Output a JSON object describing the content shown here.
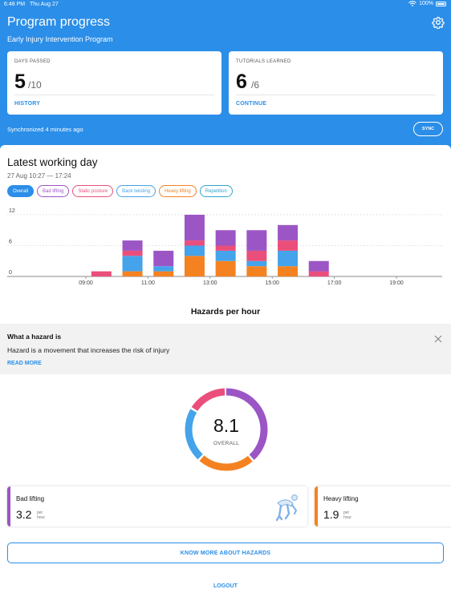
{
  "status_bar": {
    "time": "6:48 PM",
    "date": "Thu Aug 27",
    "battery": "100%"
  },
  "header": {
    "title": "Program progress",
    "subtitle": "Early Injury Intervention Program",
    "icon": "gear-icon",
    "sync_status": "Synchronized 4 minutes ago",
    "sync_label": "SYNC"
  },
  "cards": [
    {
      "label": "DAYS PASSED",
      "value": "5",
      "total": "/10",
      "link": "HISTORY"
    },
    {
      "label": "TUTORIALS LEARNED",
      "value": "6",
      "total": "/6",
      "link": "CONTINUE"
    }
  ],
  "working_day": {
    "title": "Latest working day",
    "range": "27 Aug 10:27 — 17:24",
    "chips": [
      {
        "label": "Overall",
        "color": "#2b8ee8",
        "active": true
      },
      {
        "label": "Bad lifting",
        "color": "#9c55c5"
      },
      {
        "label": "Static posture",
        "color": "#ea4f7c"
      },
      {
        "label": "Back twisting",
        "color": "#44a3ea"
      },
      {
        "label": "Heavy lifting",
        "color": "#f58220"
      },
      {
        "label": "Repetition",
        "color": "#2ea7c9"
      }
    ]
  },
  "chart_data": {
    "type": "bar",
    "stacked": true,
    "title": "Hazards per hour",
    "y_ticks": [
      "12",
      "6",
      "0"
    ],
    "x_tick_labels": [
      "09:00",
      "11:00",
      "13:00",
      "15:00",
      "17:00",
      "19:00"
    ],
    "ylim": [
      0,
      12
    ],
    "categories": [
      "10:00",
      "11:00",
      "12:00",
      "13:00",
      "14:00",
      "15:00",
      "16:00",
      "17:00"
    ],
    "series": [
      {
        "color": "#f58220",
        "values": [
          0,
          1,
          1,
          4,
          3,
          2,
          2,
          0
        ]
      },
      {
        "color": "#44a3ea",
        "values": [
          0,
          3,
          1,
          2,
          2,
          1,
          3,
          0
        ]
      },
      {
        "color": "#ea4f7c",
        "values": [
          1,
          1,
          0,
          1,
          1,
          2,
          2,
          1
        ]
      },
      {
        "color": "#9c55c5",
        "values": [
          0,
          2,
          3,
          5,
          3,
          4,
          3,
          2
        ]
      }
    ],
    "grid": true
  },
  "info": {
    "heading": "What a hazard is",
    "text": "Hazard is a movement that increases the risk of injury",
    "link": "READ MORE"
  },
  "overall": {
    "value": "8.1",
    "label": "OVERALL",
    "segments": [
      {
        "color": "#9c55c5",
        "fraction": 0.39
      },
      {
        "color": "#f58220",
        "fraction": 0.23
      },
      {
        "color": "#44a3ea",
        "fraction": 0.22
      },
      {
        "color": "#ea4f7c",
        "fraction": 0.16
      }
    ]
  },
  "hazard_cards": [
    {
      "name": "Bad lifting",
      "value": "3.2",
      "unit_top": "per",
      "unit_bottom": "hour",
      "color": "#9c55c5",
      "icon": "bad-lifting-figure-icon"
    },
    {
      "name": "Heavy lifting",
      "value": "1.9",
      "unit_top": "per",
      "unit_bottom": "hour",
      "color": "#f58220"
    }
  ],
  "know_more": "KNOW MORE ABOUT HAZARDS",
  "logout": "LOGOUT"
}
